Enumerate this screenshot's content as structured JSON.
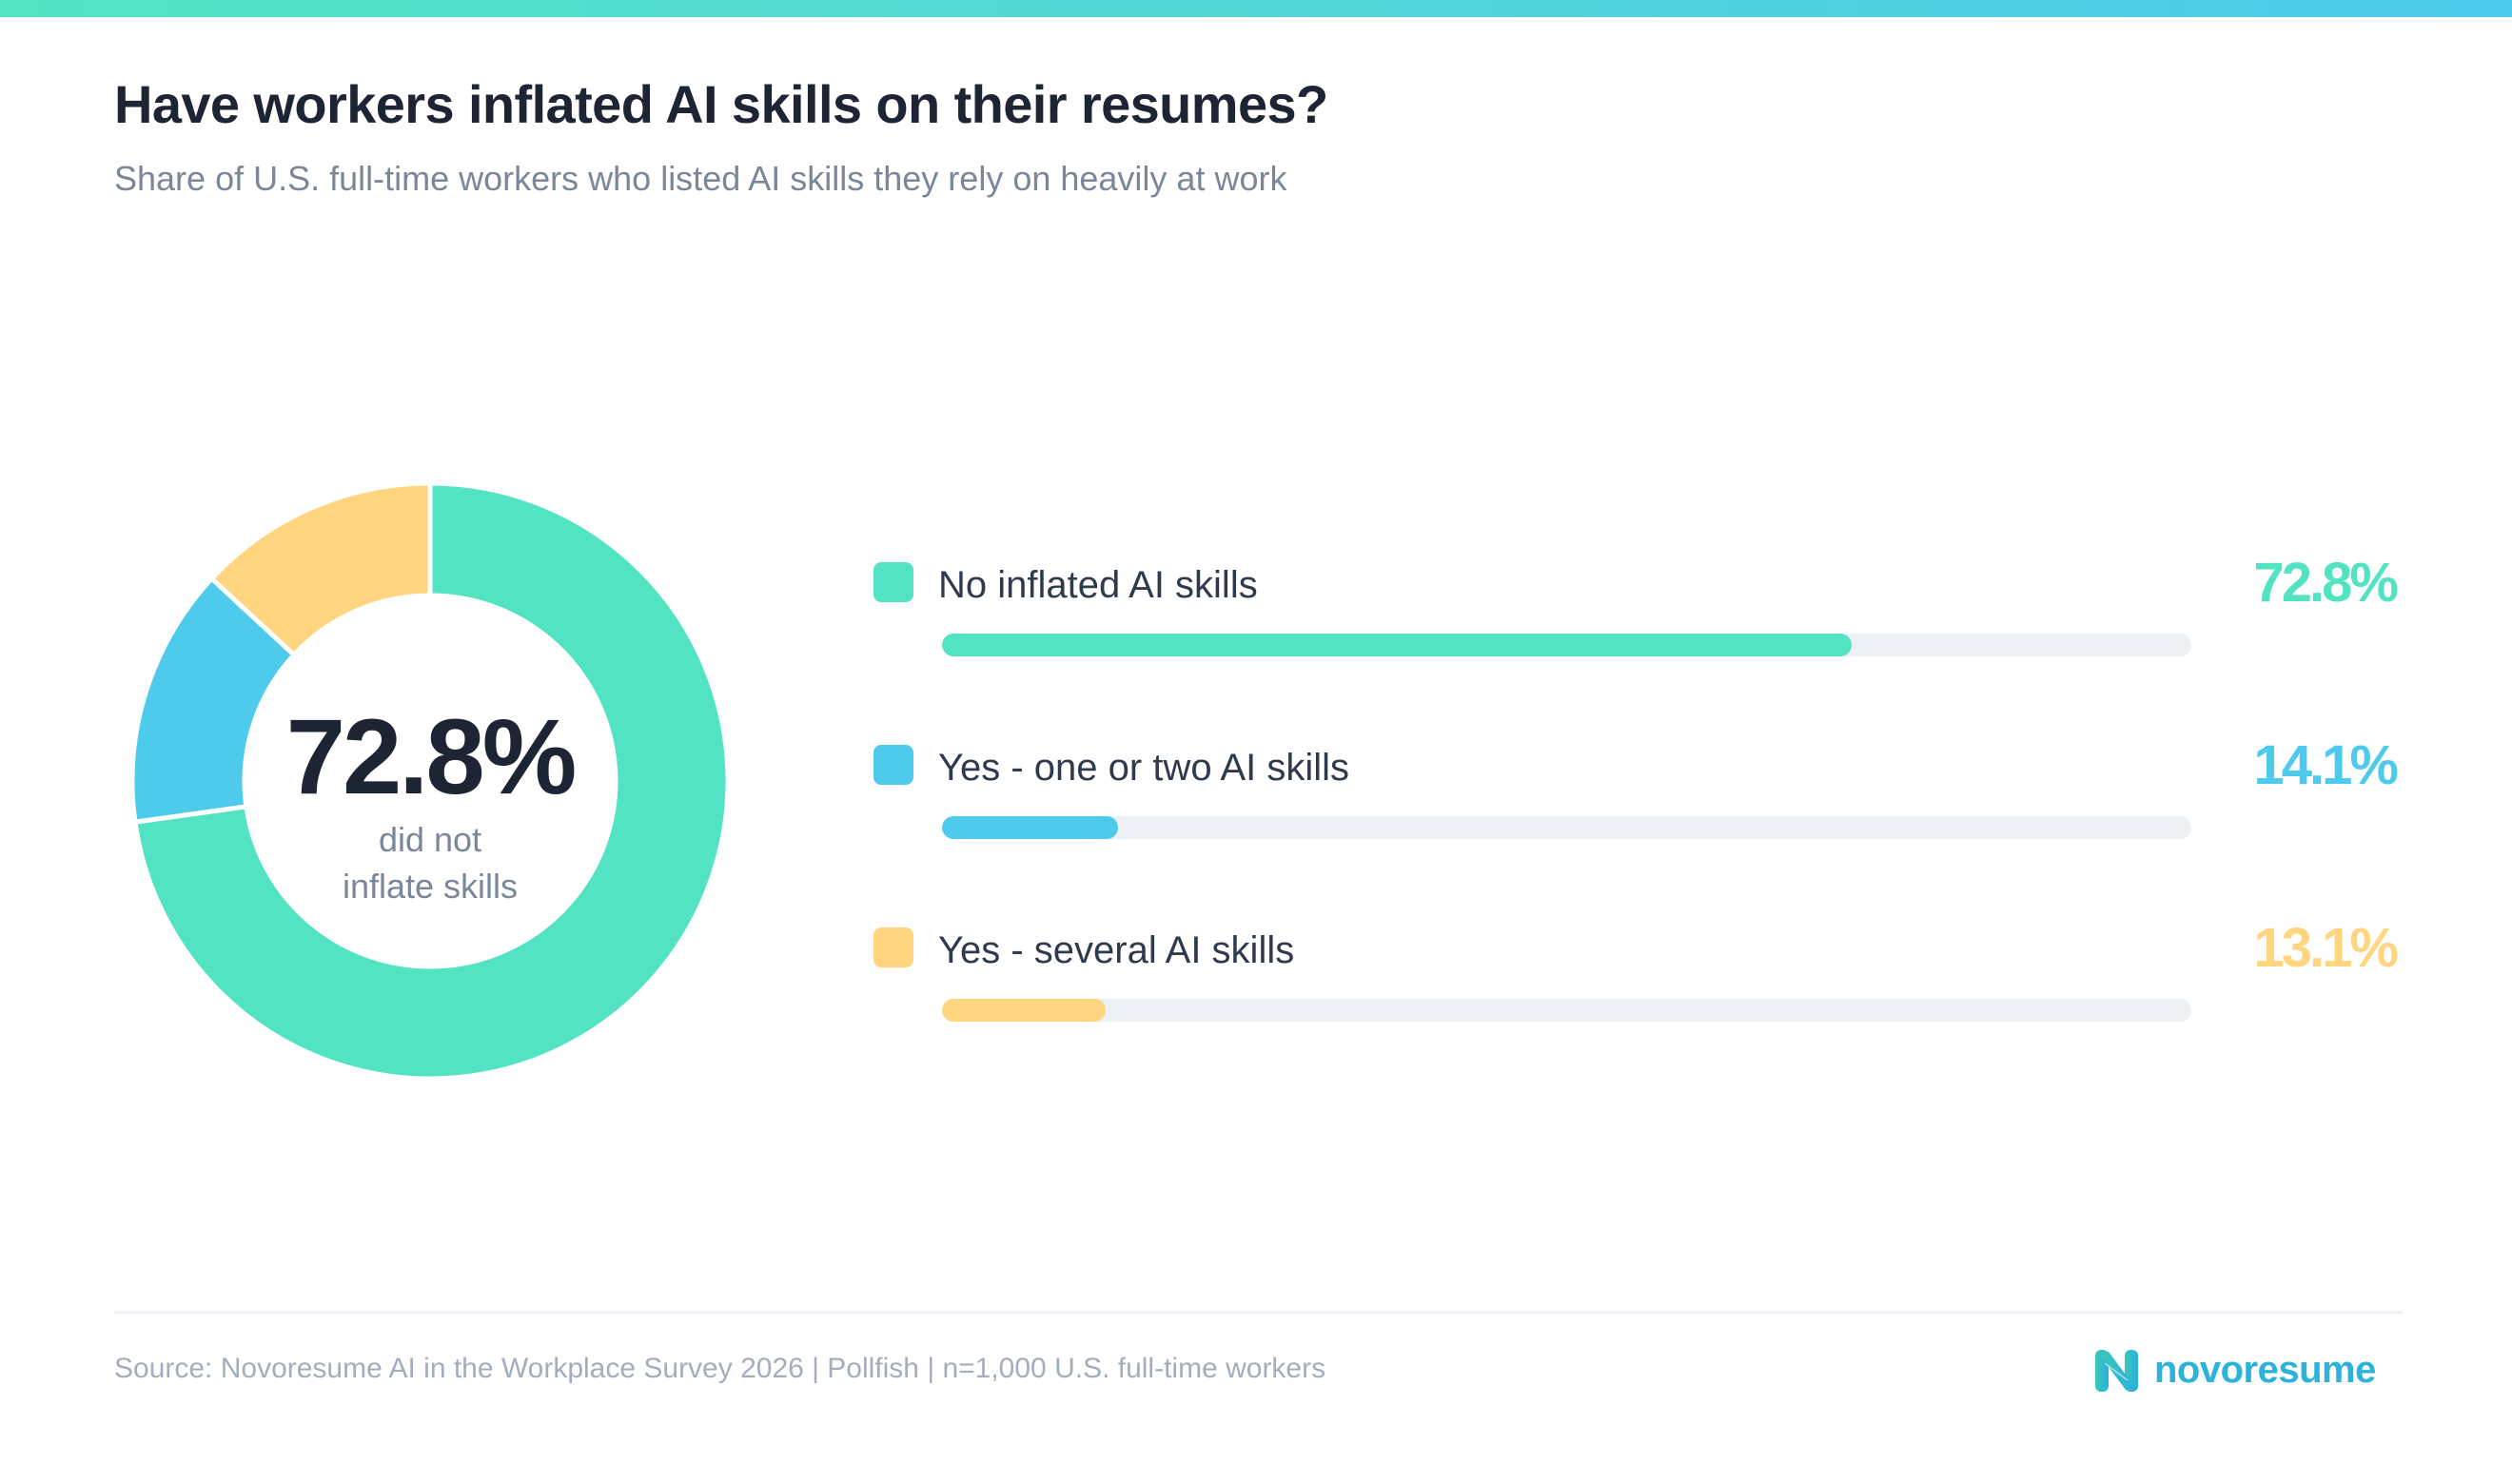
{
  "header": {
    "title": "Have workers inflated AI skills on their resumes?",
    "subtitle": "Share of U.S. full-time workers who listed AI skills they rely on heavily at work"
  },
  "donut": {
    "center_value": "72.8%",
    "center_caption_line1": "did not",
    "center_caption_line2": "inflate skills"
  },
  "legend": [
    {
      "label": "No inflated AI skills",
      "value_text": "72.8%",
      "value": 72.8,
      "color": "#52e3c2"
    },
    {
      "label": "Yes - one or two AI skills",
      "value_text": "14.1%",
      "value": 14.1,
      "color": "#4ecbec"
    },
    {
      "label": "Yes - several AI skills",
      "value_text": "13.1%",
      "value": 13.1,
      "color": "#ffd67f"
    }
  ],
  "footer": {
    "source": "Source: Novoresume AI in the Workplace Survey 2026 | Pollfish | n=1,000 U.S. full-time workers",
    "brand": "novoresume"
  },
  "colors": {
    "teal": "#52e3c2",
    "blue": "#4ecbec",
    "yellow": "#ffd67f",
    "track": "#edf0f5",
    "title": "#1d2433",
    "muted": "#7a8799",
    "brand": "#2bb3d9"
  },
  "chart_data": {
    "type": "pie",
    "variant": "donut",
    "title": "Have workers inflated AI skills on their resumes?",
    "subtitle": "Share of U.S. full-time workers who listed AI skills they rely on heavily at work",
    "categories": [
      "No inflated AI skills",
      "Yes - one or two AI skills",
      "Yes - several AI skills"
    ],
    "values": [
      72.8,
      14.1,
      13.1
    ],
    "unit": "%",
    "colors": [
      "#52e3c2",
      "#4ecbec",
      "#ffd67f"
    ],
    "center_label": "72.8% did not inflate skills",
    "legend_position": "right",
    "companion_bars": {
      "type": "bar",
      "orientation": "horizontal",
      "categories": [
        "No inflated AI skills",
        "Yes - one or two AI skills",
        "Yes - several AI skills"
      ],
      "values": [
        72.8,
        14.1,
        13.1
      ],
      "xlim": [
        0,
        100
      ]
    },
    "source": "Source: Novoresume AI in the Workplace Survey 2026 | Pollfish | n=1,000 U.S. full-time workers"
  }
}
